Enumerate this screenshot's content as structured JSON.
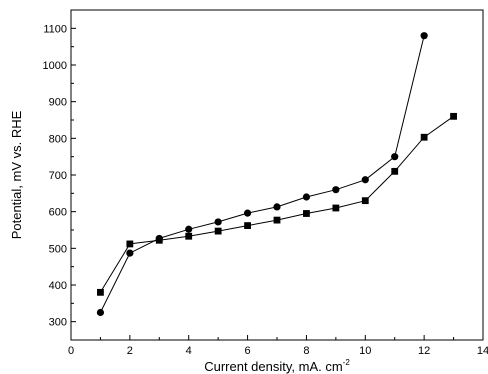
{
  "chart_data": {
    "type": "line",
    "title": "",
    "xlabel": "Current density, mA. cm",
    "xlabel_superscript": "-2",
    "ylabel": "Potential, mV vs. RHE",
    "xlim": [
      0,
      14
    ],
    "ylim": [
      250,
      1150
    ],
    "x_ticks": [
      0,
      2,
      4,
      6,
      8,
      10,
      12,
      14
    ],
    "y_ticks": [
      300,
      400,
      500,
      600,
      700,
      800,
      900,
      1000,
      1100
    ],
    "grid": false,
    "legend": "none",
    "series": [
      {
        "marker": "circle",
        "x": [
          1,
          2,
          3,
          4,
          5,
          6,
          7,
          8,
          9,
          10,
          11,
          12
        ],
        "y": [
          325,
          487,
          527,
          552,
          572,
          596,
          613,
          640,
          660,
          687,
          750,
          1080
        ]
      },
      {
        "marker": "square",
        "x": [
          1,
          2,
          3,
          4,
          5,
          6,
          7,
          8,
          9,
          10,
          11,
          12,
          13
        ],
        "y": [
          380,
          512,
          522,
          533,
          547,
          562,
          577,
          595,
          610,
          630,
          710,
          803,
          860
        ]
      }
    ]
  }
}
